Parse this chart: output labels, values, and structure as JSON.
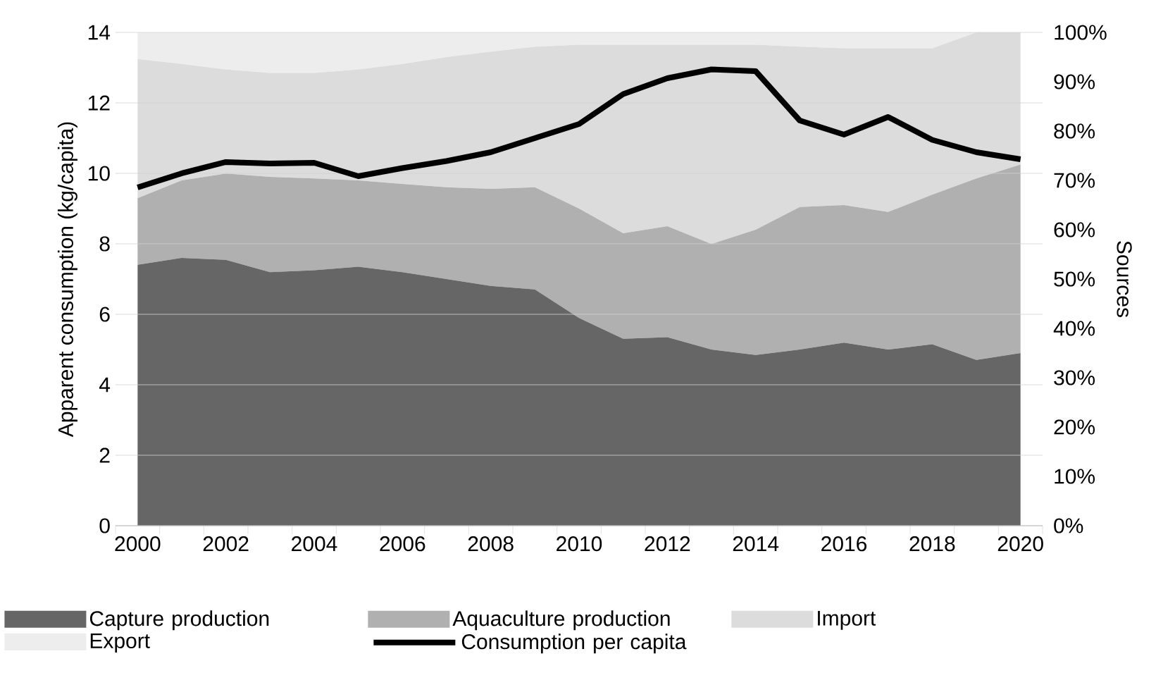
{
  "chart_data": {
    "type": "area",
    "xlabel": null,
    "ylabel": "Apparent consumption (kg/capita)",
    "y2label": "Sources",
    "categories": [
      "2000",
      null,
      "2002",
      null,
      "2004",
      null,
      "2006",
      null,
      "2008",
      null,
      "2010",
      null,
      "2012",
      null,
      "2014",
      null,
      "2016",
      null,
      "2018",
      null,
      "2020"
    ],
    "stacked": true,
    "grid": "y",
    "legend": "bottom",
    "ylim": [
      0,
      14
    ],
    "yticks": [
      0,
      2,
      4,
      6,
      8,
      10,
      12,
      14
    ],
    "y2lim": [
      0,
      100
    ],
    "y2ticks": [
      {
        "value": 0,
        "label": "0%"
      },
      {
        "value": 10,
        "label": "10%"
      },
      {
        "value": 20,
        "label": "20%"
      },
      {
        "value": 30,
        "label": "30%"
      },
      {
        "value": 40,
        "label": "40%"
      },
      {
        "value": 50,
        "label": "50%"
      },
      {
        "value": 60,
        "label": "60%"
      },
      {
        "value": 70,
        "label": "70%"
      },
      {
        "value": 80,
        "label": "80%"
      },
      {
        "value": 90,
        "label": "90%"
      },
      {
        "value": 100,
        "label": "100%"
      }
    ],
    "series": [
      {
        "name": "Capture production",
        "axis": "y2",
        "color": "#666666",
        "values": [
          52.9,
          54.3,
          53.9,
          51.4,
          51.8,
          52.5,
          51.4,
          50.0,
          48.6,
          47.9,
          42.1,
          37.9,
          38.2,
          35.7,
          34.6,
          35.7,
          37.1,
          35.7,
          36.8,
          33.6,
          35.0
        ]
      },
      {
        "name": "Aquaculture production",
        "axis": "y2",
        "color": "#b0b0b0",
        "values": [
          13.5,
          15.7,
          17.5,
          19.3,
          18.6,
          17.5,
          17.9,
          18.6,
          19.7,
          20.7,
          22.2,
          21.4,
          22.5,
          21.4,
          25.4,
          28.9,
          27.9,
          27.9,
          30.3,
          36.8,
          38.2
        ]
      },
      {
        "name": "Import",
        "axis": "y2",
        "color": "#dcdcdc",
        "values": [
          28.2,
          23.6,
          21.1,
          21.1,
          21.4,
          22.5,
          24.3,
          26.4,
          27.8,
          28.5,
          33.2,
          38.2,
          36.8,
          40.4,
          37.5,
          32.5,
          31.8,
          33.2,
          29.7,
          29.6,
          26.8
        ]
      },
      {
        "name": "Export",
        "axis": "y2",
        "color": "#ededed",
        "values": [
          5.4,
          6.4,
          7.5,
          8.2,
          8.2,
          7.5,
          6.4,
          5.0,
          3.9,
          2.9,
          2.5,
          2.5,
          2.5,
          2.5,
          2.5,
          2.9,
          3.2,
          3.2,
          3.2,
          0,
          0
        ]
      },
      {
        "name": "Consumption per capita",
        "type": "line",
        "axis": "y",
        "color": "#000000",
        "values": [
          9.6,
          10.0,
          10.32,
          10.28,
          10.3,
          9.92,
          10.15,
          10.35,
          10.6,
          11.0,
          11.4,
          12.25,
          12.7,
          12.95,
          12.9,
          11.5,
          11.1,
          11.6,
          10.95,
          10.6,
          10.4
        ]
      }
    ]
  }
}
